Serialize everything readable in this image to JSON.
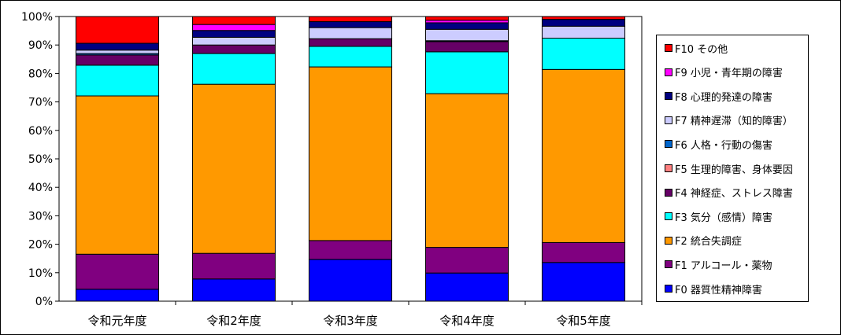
{
  "chart_data": {
    "type": "bar",
    "stacked": true,
    "normalized": true,
    "title": "",
    "xlabel": "",
    "ylabel": "",
    "ylim": [
      0,
      100
    ],
    "y_ticks": [
      "0%",
      "10%",
      "20%",
      "30%",
      "40%",
      "50%",
      "60%",
      "70%",
      "80%",
      "90%",
      "100%"
    ],
    "grid": false,
    "legend_position": "right",
    "categories": [
      "令和元年度",
      "令和2年度",
      "令和3年度",
      "令和4年度",
      "令和5年度"
    ],
    "series": [
      {
        "name": "F0 器質性精神障害",
        "color": "#0000FF",
        "values": [
          4.2,
          7.8,
          14.7,
          9.9,
          13.6
        ]
      },
      {
        "name": "F1 アルコール・薬物",
        "color": "#800080",
        "values": [
          12.3,
          9.0,
          6.6,
          9.0,
          7.0
        ]
      },
      {
        "name": "F2 統合失調症",
        "color": "#FF9900",
        "values": [
          55.6,
          59.4,
          61.0,
          54.0,
          60.8
        ]
      },
      {
        "name": "F3 気分（感情）障害",
        "color": "#00FFFF",
        "values": [
          10.8,
          10.8,
          7.2,
          14.7,
          11.0
        ]
      },
      {
        "name": "F4 神経症、ストレス障害",
        "color": "#660066",
        "values": [
          3.6,
          3.0,
          2.7,
          3.6,
          0.0
        ]
      },
      {
        "name": "F5 生理的障害、身体要因",
        "color": "#FF8080",
        "values": [
          0.0,
          0.0,
          0.0,
          0.0,
          0.0
        ]
      },
      {
        "name": "F6 人格・行動の傷害",
        "color": "#0066CC",
        "values": [
          0.5,
          0.0,
          0.0,
          0.3,
          0.0
        ]
      },
      {
        "name": "F7 精神遅滞（知的障害）",
        "color": "#CCCCFF",
        "values": [
          1.2,
          2.7,
          3.9,
          4.0,
          4.2
        ]
      },
      {
        "name": "F8 心理的発達の障害",
        "color": "#000080",
        "values": [
          2.4,
          2.4,
          2.1,
          2.3,
          2.4
        ]
      },
      {
        "name": "F9 小児・青年期の障害",
        "color": "#FF00FF",
        "values": [
          0.0,
          2.1,
          0.0,
          0.9,
          0.0
        ]
      },
      {
        "name": "F10 その他",
        "color": "#FF0000",
        "values": [
          9.4,
          2.8,
          1.8,
          1.3,
          1.0
        ]
      }
    ]
  }
}
